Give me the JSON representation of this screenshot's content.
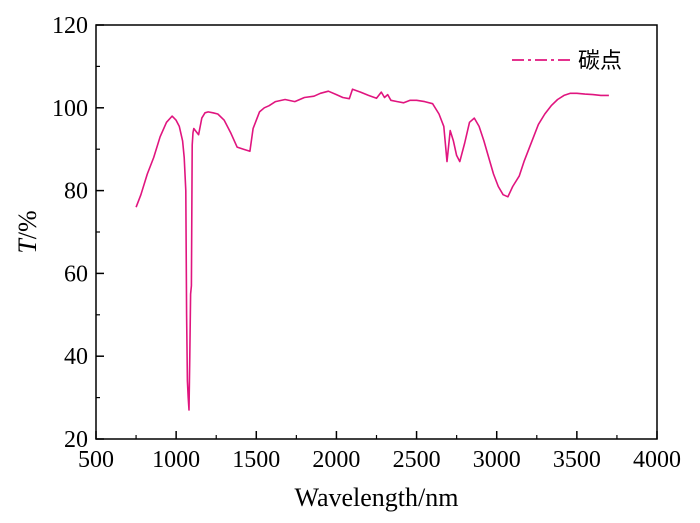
{
  "chart_data": {
    "type": "line",
    "title": "",
    "xlabel": "Wavelength/nm",
    "ylabel_italic": "T",
    "ylabel_rest": "/%",
    "xlim": [
      500,
      4000
    ],
    "ylim": [
      20,
      120
    ],
    "xticks": [
      500,
      1000,
      1500,
      2000,
      2500,
      3000,
      3500,
      4000
    ],
    "yticks": [
      20,
      40,
      60,
      80,
      100,
      120
    ],
    "grid": false,
    "legend_position": "top-right",
    "series": [
      {
        "name": "碳点",
        "color": "#e0157f",
        "x": [
          750,
          780,
          820,
          860,
          900,
          940,
          975,
          1000,
          1020,
          1040,
          1050,
          1060,
          1065,
          1070,
          1075,
          1080,
          1085,
          1090,
          1095,
          1100,
          1105,
          1110,
          1120,
          1140,
          1160,
          1180,
          1200,
          1230,
          1260,
          1300,
          1340,
          1380,
          1420,
          1460,
          1480,
          1500,
          1520,
          1550,
          1580,
          1620,
          1680,
          1740,
          1800,
          1860,
          1900,
          1950,
          2000,
          2040,
          2080,
          2100,
          2150,
          2200,
          2250,
          2280,
          2300,
          2320,
          2340,
          2380,
          2420,
          2460,
          2500,
          2550,
          2600,
          2640,
          2670,
          2690,
          2710,
          2730,
          2750,
          2770,
          2800,
          2830,
          2860,
          2890,
          2920,
          2950,
          2980,
          3010,
          3040,
          3070,
          3100,
          3140,
          3170,
          3200,
          3230,
          3260,
          3300,
          3340,
          3380,
          3420,
          3460,
          3500,
          3550,
          3600,
          3650,
          3700
        ],
        "y": [
          76,
          79,
          84,
          88,
          93,
          96.5,
          98,
          97,
          95.5,
          92,
          88,
          80,
          50,
          34,
          30,
          27,
          40,
          55,
          57,
          91,
          94,
          95,
          94.5,
          93.5,
          97.5,
          98.8,
          99,
          98.8,
          98.5,
          97,
          94,
          90.5,
          90,
          89.5,
          95,
          97,
          99,
          100,
          100.5,
          101.5,
          102,
          101.5,
          102.5,
          102.8,
          103.5,
          104,
          103.2,
          102.5,
          102.2,
          104.5,
          103.8,
          103,
          102.3,
          103.8,
          102.5,
          103.2,
          101.8,
          101.5,
          101.2,
          101.8,
          101.8,
          101.5,
          101,
          98.5,
          95.5,
          87,
          94.5,
          92,
          88.5,
          87,
          91.5,
          96.5,
          97.5,
          95.5,
          92,
          88,
          84,
          81,
          79,
          78.5,
          81,
          83.5,
          87,
          90,
          93,
          96,
          98.5,
          100.5,
          102,
          103,
          103.5,
          103.5,
          103.3,
          103.2,
          103,
          103
        ]
      }
    ]
  }
}
